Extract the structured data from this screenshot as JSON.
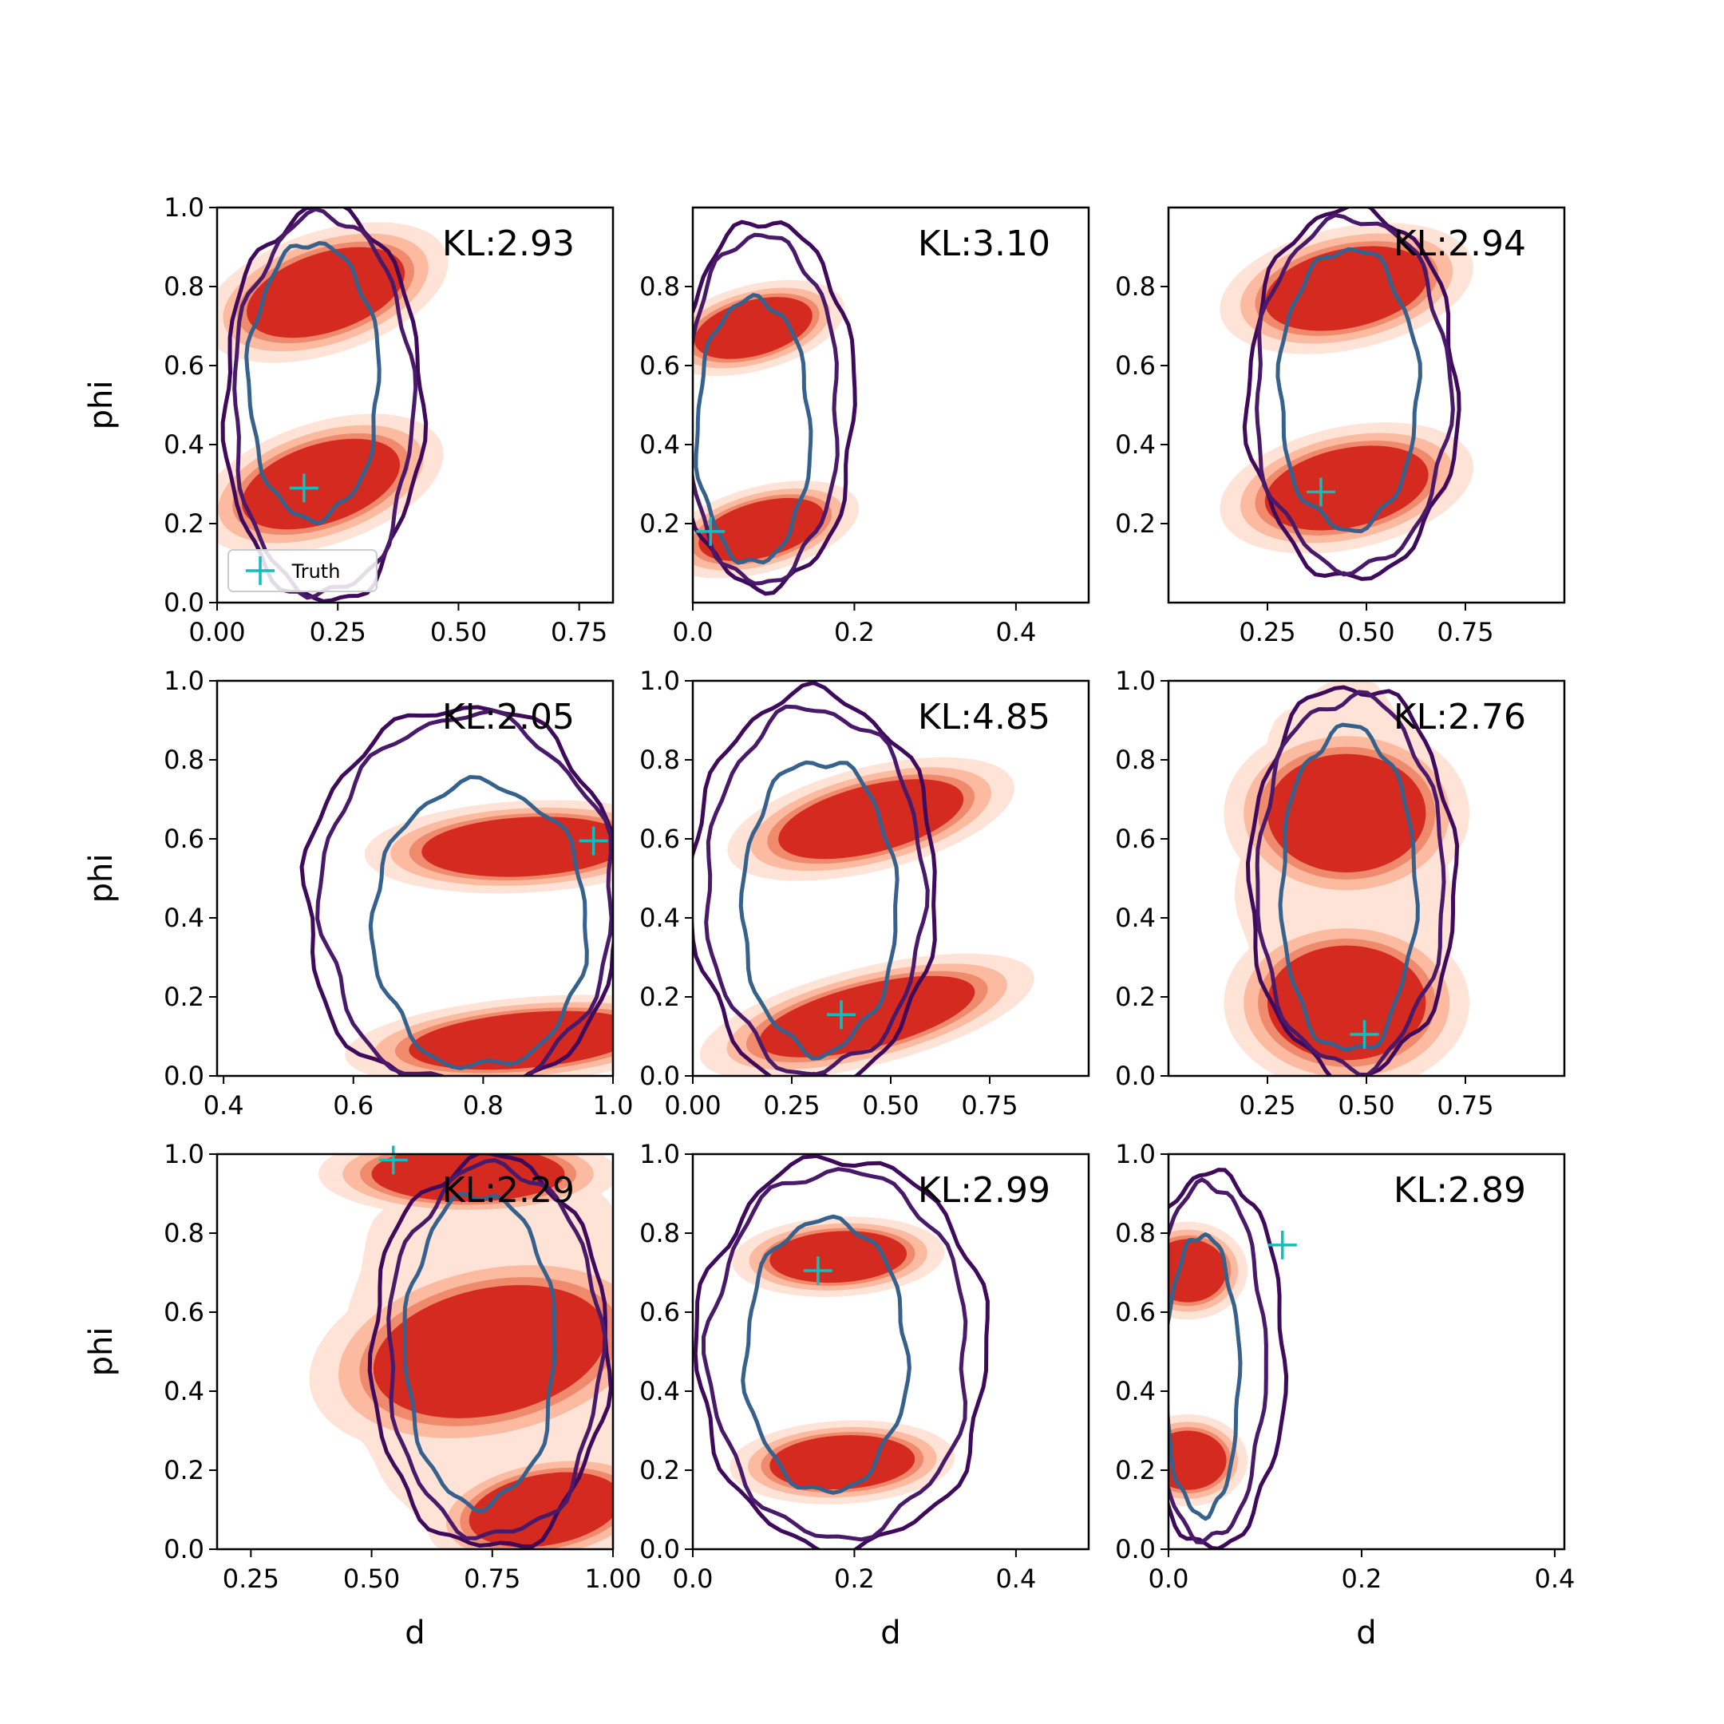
{
  "chart_data": {
    "type": "contour-grid",
    "legend": {
      "label": "Truth",
      "marker": "+",
      "placement": "lower-left",
      "panel": 0
    },
    "colors": {
      "fill_levels": [
        "#fee3d6",
        "#fcbba1",
        "#f08a6c",
        "#d42a20"
      ],
      "contour_outer": "#3f0a5c",
      "contour_mid": "#4a1a6a",
      "contour_inner": "#35618c",
      "truth": "#14bdbd"
    },
    "panels": [
      {
        "kl": "KL:2.93",
        "xlabel": "",
        "ylabel": "phi",
        "xlim": [
          0,
          0.82
        ],
        "ylim": [
          0,
          1
        ],
        "xticks": [
          "0.00",
          "0.25",
          "0.50",
          "0.75"
        ],
        "xtick_values": [
          0,
          0.25,
          0.5,
          0.75
        ],
        "yticks": [
          "0.0",
          "0.2",
          "0.4",
          "0.6",
          "0.8",
          "1.0"
        ],
        "ytick_values": [
          0,
          0.2,
          0.4,
          0.6,
          0.8,
          1.0
        ],
        "truth": [
          0.18,
          0.29
        ],
        "blobs": [
          {
            "cx": 0.225,
            "cy": 0.785,
            "rx": 0.17,
            "ry": 0.1,
            "rot": 18
          },
          {
            "cx": 0.215,
            "cy": 0.3,
            "rx": 0.17,
            "ry": 0.1,
            "rot": 18
          }
        ],
        "fill_mode": "split",
        "contours": [
          {
            "cx": 0.22,
            "cy": 0.5,
            "rx": 0.205,
            "ry": 0.5,
            "style": "outer"
          },
          {
            "cx": 0.22,
            "cy": 0.5,
            "rx": 0.185,
            "ry": 0.48,
            "style": "mid"
          },
          {
            "cx": 0.2,
            "cy": 0.56,
            "rx": 0.135,
            "ry": 0.35,
            "style": "inner"
          }
        ]
      },
      {
        "kl": "KL:3.10",
        "xlabel": "",
        "ylabel": "",
        "xlim": [
          0,
          0.49
        ],
        "ylim": [
          0,
          1
        ],
        "xticks": [
          "0.0",
          "0.2",
          "0.4"
        ],
        "xtick_values": [
          0,
          0.2,
          0.4
        ],
        "yticks": [
          "0.2",
          "0.4",
          "0.6",
          "0.8"
        ],
        "ytick_values": [
          0.2,
          0.4,
          0.6,
          0.8
        ],
        "truth": [
          0.022,
          0.18
        ],
        "blobs": [
          {
            "cx": 0.075,
            "cy": 0.695,
            "rx": 0.075,
            "ry": 0.07,
            "rot": 15
          },
          {
            "cx": 0.085,
            "cy": 0.185,
            "rx": 0.08,
            "ry": 0.07,
            "rot": 15
          }
        ],
        "fill_mode": "split",
        "contours": [
          {
            "cx": 0.09,
            "cy": 0.5,
            "rx": 0.11,
            "ry": 0.465,
            "style": "outer"
          },
          {
            "cx": 0.085,
            "cy": 0.49,
            "rx": 0.095,
            "ry": 0.44,
            "style": "mid"
          },
          {
            "cx": 0.075,
            "cy": 0.435,
            "rx": 0.07,
            "ry": 0.335,
            "style": "inner"
          }
        ]
      },
      {
        "kl": "KL:2.94",
        "xlabel": "",
        "ylabel": "",
        "xlim": [
          0,
          1
        ],
        "ylim": [
          0,
          1
        ],
        "xticks": [
          "0.25",
          "0.50",
          "0.75"
        ],
        "xtick_values": [
          0.25,
          0.5,
          0.75
        ],
        "yticks": [
          "0.2",
          "0.4",
          "0.6",
          "0.8"
        ],
        "ytick_values": [
          0.2,
          0.4,
          0.6,
          0.8
        ],
        "truth": [
          0.385,
          0.28
        ],
        "blobs": [
          {
            "cx": 0.45,
            "cy": 0.795,
            "rx": 0.21,
            "ry": 0.1,
            "rot": 12
          },
          {
            "cx": 0.45,
            "cy": 0.29,
            "rx": 0.21,
            "ry": 0.1,
            "rot": 12
          }
        ],
        "fill_mode": "split",
        "contours": [
          {
            "cx": 0.465,
            "cy": 0.53,
            "rx": 0.265,
            "ry": 0.47,
            "style": "outer"
          },
          {
            "cx": 0.465,
            "cy": 0.53,
            "rx": 0.245,
            "ry": 0.445,
            "style": "mid"
          },
          {
            "cx": 0.455,
            "cy": 0.54,
            "rx": 0.175,
            "ry": 0.355,
            "style": "inner"
          }
        ]
      },
      {
        "kl": "KL:2.05",
        "xlabel": "",
        "ylabel": "phi",
        "xlim": [
          0.39,
          1.0
        ],
        "ylim": [
          0,
          1
        ],
        "xticks": [
          "0.4",
          "0.6",
          "0.8",
          "1.0"
        ],
        "xtick_values": [
          0.4,
          0.6,
          0.8,
          1.0
        ],
        "yticks": [
          "0.0",
          "0.2",
          "0.4",
          "0.6",
          "0.8",
          "1.0"
        ],
        "ytick_values": [
          0,
          0.2,
          0.4,
          0.6,
          0.8,
          1.0
        ],
        "truth": [
          0.97,
          0.595
        ],
        "blobs": [
          {
            "cx": 0.865,
            "cy": 0.58,
            "rx": 0.16,
            "ry": 0.075,
            "rot": 3
          },
          {
            "cx": 0.865,
            "cy": 0.09,
            "rx": 0.18,
            "ry": 0.07,
            "rot": 5
          }
        ],
        "fill_mode": "split",
        "contours": [
          {
            "cx": 0.77,
            "cy": 0.44,
            "rx": 0.245,
            "ry": 0.495,
            "style": "outer"
          },
          {
            "cx": 0.775,
            "cy": 0.44,
            "rx": 0.225,
            "ry": 0.47,
            "style": "mid"
          },
          {
            "cx": 0.795,
            "cy": 0.38,
            "rx": 0.165,
            "ry": 0.36,
            "style": "inner"
          }
        ]
      },
      {
        "kl": "KL:4.85",
        "xlabel": "",
        "ylabel": "",
        "xlim": [
          0,
          1
        ],
        "ylim": [
          0,
          1
        ],
        "xticks": [
          "0.00",
          "0.25",
          "0.50",
          "0.75"
        ],
        "xtick_values": [
          0,
          0.25,
          0.5,
          0.75
        ],
        "yticks": [
          "0.0",
          "0.2",
          "0.4",
          "0.6",
          "0.8",
          "1.0"
        ],
        "ytick_values": [
          0,
          0.2,
          0.4,
          0.6,
          0.8,
          1.0
        ],
        "truth": [
          0.375,
          0.155
        ],
        "blobs": [
          {
            "cx": 0.45,
            "cy": 0.65,
            "rx": 0.24,
            "ry": 0.085,
            "rot": 14
          },
          {
            "cx": 0.44,
            "cy": 0.15,
            "rx": 0.28,
            "ry": 0.08,
            "rot": 14
          }
        ],
        "fill_mode": "split",
        "contours": [
          {
            "cx": 0.305,
            "cy": 0.475,
            "rx": 0.31,
            "ry": 0.495,
            "style": "outer"
          },
          {
            "cx": 0.31,
            "cy": 0.47,
            "rx": 0.275,
            "ry": 0.46,
            "style": "mid"
          },
          {
            "cx": 0.32,
            "cy": 0.43,
            "rx": 0.195,
            "ry": 0.37,
            "style": "inner"
          }
        ]
      },
      {
        "kl": "KL:2.76",
        "xlabel": "",
        "ylabel": "",
        "xlim": [
          0,
          1
        ],
        "ylim": [
          0,
          1
        ],
        "xticks": [
          "0.25",
          "0.50",
          "0.75"
        ],
        "xtick_values": [
          0.25,
          0.5,
          0.75
        ],
        "yticks": [
          "0.0",
          "0.2",
          "0.4",
          "0.6",
          "0.8",
          "1.0"
        ],
        "ytick_values": [
          0,
          0.2,
          0.4,
          0.6,
          0.8,
          1.0
        ],
        "truth": [
          0.495,
          0.105
        ],
        "blobs": [
          {
            "cx": 0.45,
            "cy": 0.665,
            "rx": 0.2,
            "ry": 0.15,
            "rot": 0
          },
          {
            "cx": 0.45,
            "cy": 0.185,
            "rx": 0.2,
            "ry": 0.145,
            "rot": 0
          }
        ],
        "fill_mode": "band",
        "contours": [
          {
            "cx": 0.465,
            "cy": 0.495,
            "rx": 0.26,
            "ry": 0.495,
            "style": "outer"
          },
          {
            "cx": 0.46,
            "cy": 0.49,
            "rx": 0.235,
            "ry": 0.47,
            "style": "mid"
          },
          {
            "cx": 0.455,
            "cy": 0.47,
            "rx": 0.17,
            "ry": 0.41,
            "style": "inner"
          }
        ]
      },
      {
        "kl": "KL:2.29",
        "xlabel": "d",
        "ylabel": "phi",
        "xlim": [
          0.18,
          1.0
        ],
        "ylim": [
          0,
          1
        ],
        "xticks": [
          "0.25",
          "0.50",
          "0.75",
          "1.00"
        ],
        "xtick_values": [
          0.25,
          0.5,
          0.75,
          1.0
        ],
        "yticks": [
          "0.0",
          "0.2",
          "0.4",
          "0.6",
          "0.8",
          "1.0"
        ],
        "ytick_values": [
          0,
          0.2,
          0.4,
          0.6,
          0.8,
          1.0
        ],
        "truth": [
          0.545,
          0.985
        ],
        "blobs": [
          {
            "cx": 0.7,
            "cy": 0.95,
            "rx": 0.2,
            "ry": 0.07,
            "rot": 0
          },
          {
            "cx": 0.745,
            "cy": 0.5,
            "rx": 0.245,
            "ry": 0.16,
            "rot": 12
          },
          {
            "cx": 0.86,
            "cy": 0.1,
            "rx": 0.16,
            "ry": 0.09,
            "rot": 10
          }
        ],
        "fill_mode": "band",
        "contours": [
          {
            "cx": 0.745,
            "cy": 0.495,
            "rx": 0.245,
            "ry": 0.495,
            "style": "outer"
          },
          {
            "cx": 0.755,
            "cy": 0.5,
            "rx": 0.22,
            "ry": 0.47,
            "style": "mid"
          },
          {
            "cx": 0.725,
            "cy": 0.505,
            "rx": 0.155,
            "ry": 0.395,
            "style": "inner"
          }
        ]
      },
      {
        "kl": "KL:2.99",
        "xlabel": "d",
        "ylabel": "",
        "xlim": [
          0,
          0.49
        ],
        "ylim": [
          0,
          1
        ],
        "xticks": [
          "0.0",
          "0.2",
          "0.4"
        ],
        "xtick_values": [
          0,
          0.2,
          0.4
        ],
        "yticks": [
          "0.0",
          "0.2",
          "0.4",
          "0.6",
          "0.8",
          "1.0"
        ],
        "ytick_values": [
          0,
          0.2,
          0.4,
          0.6,
          0.8,
          1.0
        ],
        "truth": [
          0.155,
          0.705
        ],
        "blobs": [
          {
            "cx": 0.18,
            "cy": 0.74,
            "rx": 0.085,
            "ry": 0.065,
            "rot": 3
          },
          {
            "cx": 0.185,
            "cy": 0.22,
            "rx": 0.09,
            "ry": 0.068,
            "rot": 3
          }
        ],
        "fill_mode": "split",
        "contours": [
          {
            "cx": 0.185,
            "cy": 0.495,
            "rx": 0.18,
            "ry": 0.495,
            "style": "outer"
          },
          {
            "cx": 0.18,
            "cy": 0.495,
            "rx": 0.16,
            "ry": 0.465,
            "style": "mid"
          },
          {
            "cx": 0.165,
            "cy": 0.49,
            "rx": 0.1,
            "ry": 0.345,
            "style": "inner"
          }
        ]
      },
      {
        "kl": "KL:2.89",
        "xlabel": "d",
        "ylabel": "",
        "xlim": [
          0,
          0.41
        ],
        "ylim": [
          0,
          1
        ],
        "xticks": [
          "0.0",
          "0.2",
          "0.4"
        ],
        "xtick_values": [
          0,
          0.2,
          0.4
        ],
        "yticks": [
          "0.0",
          "0.2",
          "0.4",
          "0.6",
          "0.8",
          "1.0"
        ],
        "ytick_values": [
          0,
          0.2,
          0.4,
          0.6,
          0.8,
          1.0
        ],
        "truth": [
          0.118,
          0.77
        ],
        "blobs": [
          {
            "cx": 0.02,
            "cy": 0.705,
            "rx": 0.04,
            "ry": 0.08,
            "rot": 0
          },
          {
            "cx": 0.02,
            "cy": 0.225,
            "rx": 0.04,
            "ry": 0.075,
            "rot": 0
          }
        ],
        "fill_mode": "split",
        "contours": [
          {
            "cx": 0.045,
            "cy": 0.48,
            "rx": 0.075,
            "ry": 0.475,
            "style": "outer"
          },
          {
            "cx": 0.04,
            "cy": 0.475,
            "rx": 0.06,
            "ry": 0.45,
            "style": "mid"
          },
          {
            "cx": 0.035,
            "cy": 0.44,
            "rx": 0.038,
            "ry": 0.355,
            "style": "inner"
          }
        ]
      }
    ]
  }
}
